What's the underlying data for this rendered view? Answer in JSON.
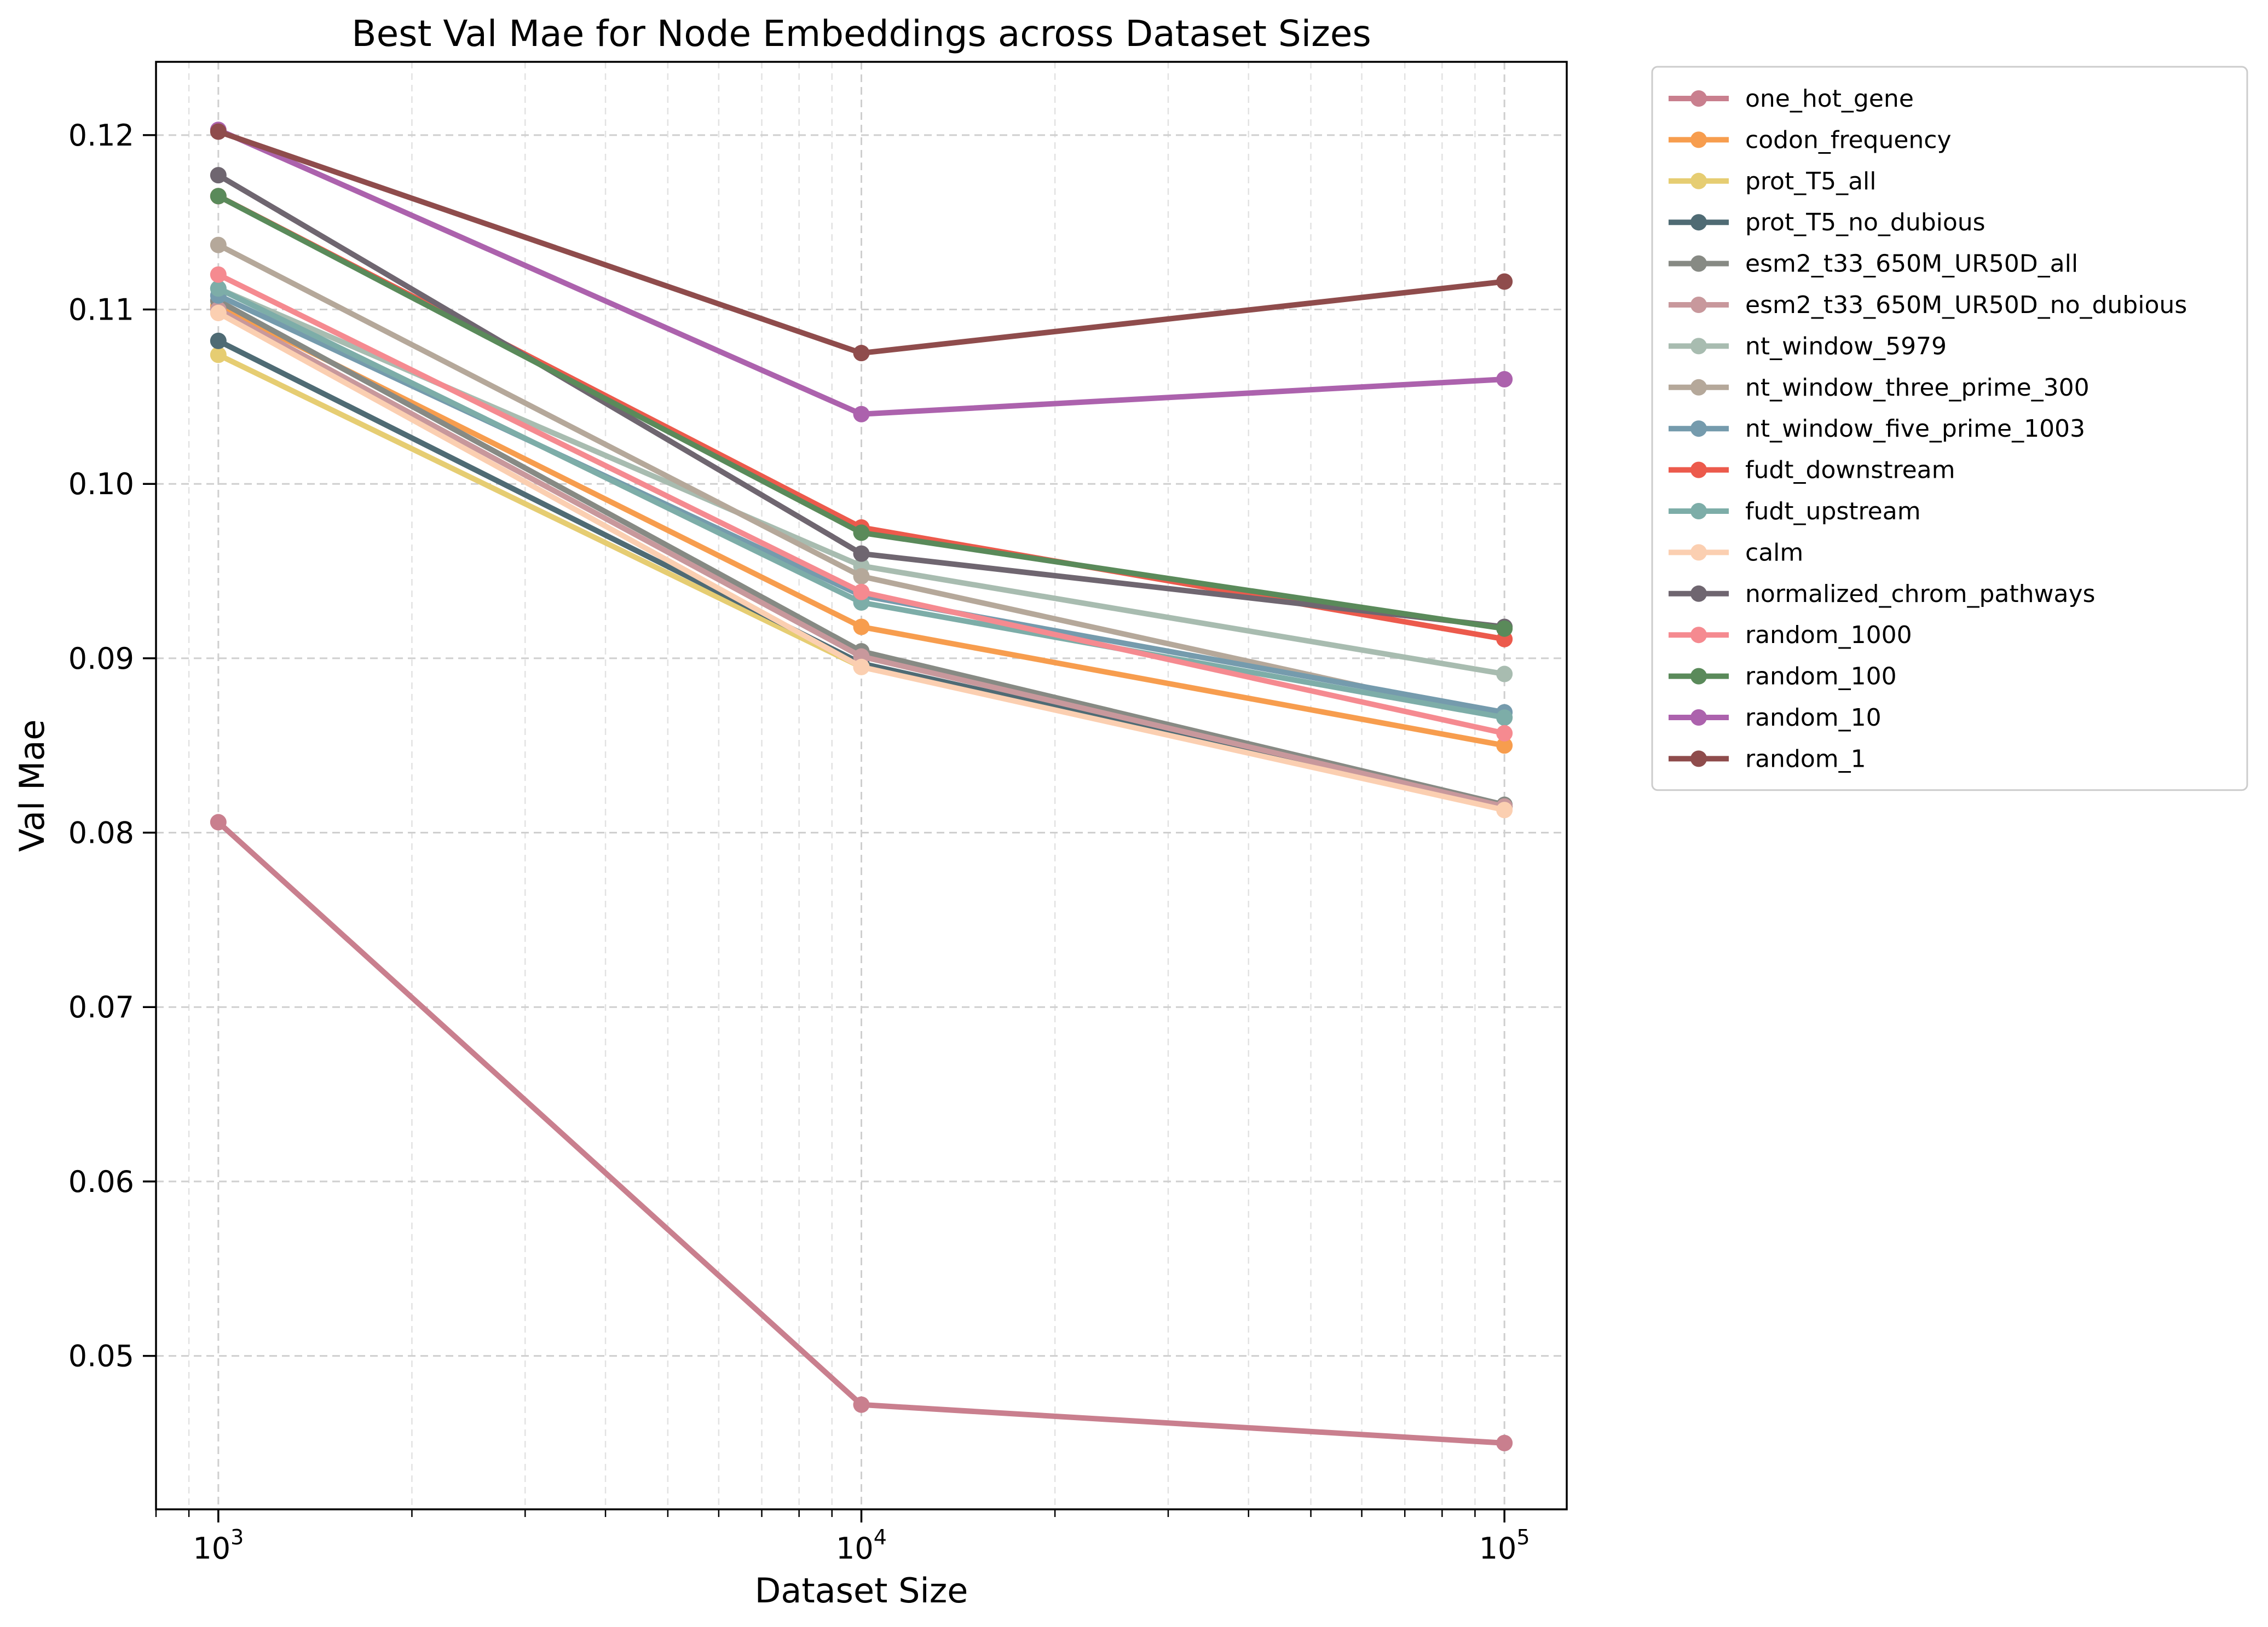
{
  "chart_data": {
    "type": "line",
    "title": "Best Val Mae for Node Embeddings across Dataset Sizes",
    "xlabel": "Dataset Size",
    "ylabel": "Val Mae",
    "xscale": "log",
    "x": [
      1000,
      10000,
      100000
    ],
    "x_tick_labels": [
      {
        "base": "10",
        "exp": "3"
      },
      {
        "base": "10",
        "exp": "4"
      },
      {
        "base": "10",
        "exp": "5"
      }
    ],
    "xlim": [
      800,
      125000
    ],
    "ylim": [
      0.0412,
      0.1242
    ],
    "yticks": [
      0.05,
      0.06,
      0.07,
      0.08,
      0.09,
      0.1,
      0.11,
      0.12
    ],
    "ytick_labels": [
      "0.05",
      "0.06",
      "0.07",
      "0.08",
      "0.09",
      "0.10",
      "0.11",
      "0.12"
    ],
    "grid": true,
    "legend_position": "outside-right",
    "series": [
      {
        "name": "one_hot_gene",
        "color": "#c97f8e",
        "values": [
          0.0806,
          0.0472,
          0.045
        ]
      },
      {
        "name": "codon_frequency",
        "color": "#f79d4e",
        "values": [
          0.1102,
          0.0918,
          0.085
        ]
      },
      {
        "name": "prot_T5_all",
        "color": "#e6cd72",
        "values": [
          0.1074,
          0.0895,
          0.0815
        ]
      },
      {
        "name": "prot_T5_no_dubious",
        "color": "#4f6b74",
        "values": [
          0.1082,
          0.0897,
          0.0815
        ]
      },
      {
        "name": "esm2_t33_650M_UR50D_all",
        "color": "#878a84",
        "values": [
          0.1105,
          0.0904,
          0.0816
        ]
      },
      {
        "name": "esm2_t33_650M_UR50D_no_dubious",
        "color": "#c8989c",
        "values": [
          0.11,
          0.0901,
          0.0815
        ]
      },
      {
        "name": "nt_window_5979",
        "color": "#a8bcb0",
        "values": [
          0.1112,
          0.0953,
          0.0891
        ]
      },
      {
        "name": "nt_window_three_prime_300",
        "color": "#b5a89a",
        "values": [
          0.1137,
          0.0947,
          0.0866
        ]
      },
      {
        "name": "nt_window_five_prime_1003",
        "color": "#759bad",
        "values": [
          0.1108,
          0.0936,
          0.0869
        ]
      },
      {
        "name": "fudt_downstream",
        "color": "#ec5a4c",
        "values": [
          0.1165,
          0.0975,
          0.0911
        ]
      },
      {
        "name": "fudt_upstream",
        "color": "#7dada8",
        "values": [
          0.1112,
          0.0932,
          0.0866
        ]
      },
      {
        "name": "calm",
        "color": "#fbcfb1",
        "values": [
          0.1098,
          0.0895,
          0.0813
        ]
      },
      {
        "name": "normalized_chrom_pathways",
        "color": "#6f6670",
        "values": [
          0.1177,
          0.096,
          0.0918
        ]
      },
      {
        "name": "random_1000",
        "color": "#f58a90",
        "values": [
          0.112,
          0.0938,
          0.0857
        ]
      },
      {
        "name": "random_100",
        "color": "#5a8a5a",
        "values": [
          0.1165,
          0.0972,
          0.0917
        ]
      },
      {
        "name": "random_10",
        "color": "#ac62ad",
        "values": [
          0.1203,
          0.104,
          0.106
        ]
      },
      {
        "name": "random_1",
        "color": "#8f4c4c",
        "values": [
          0.1202,
          0.1075,
          0.1116
        ]
      }
    ]
  }
}
